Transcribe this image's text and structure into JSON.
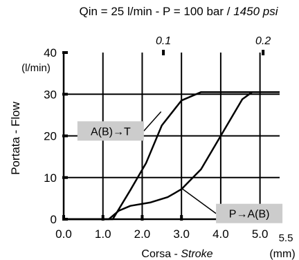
{
  "chart_data": {
    "type": "line",
    "title": {
      "prefix": "Qin = 25 l/min - P = 100 bar / ",
      "suffix": "1450 psi"
    },
    "xlabel": {
      "main": "Corsa - ",
      "alt": "Stroke"
    },
    "x_unit": "(mm)",
    "ylabel": "Portata - Flow",
    "y_unit": "(l/min)",
    "xlim": [
      0,
      5.5
    ],
    "ylim": [
      0,
      40
    ],
    "x_ticks": [
      {
        "value": 0,
        "label": "0.0"
      },
      {
        "value": 1,
        "label": "1.0"
      },
      {
        "value": 2,
        "label": "2.0"
      },
      {
        "value": 3,
        "label": "3.0"
      },
      {
        "value": 4,
        "label": "4.0"
      },
      {
        "value": 5,
        "label": "5.0"
      },
      {
        "value": 5.5,
        "label": "5.5"
      }
    ],
    "y_ticks": [
      {
        "value": 0,
        "label": "0"
      },
      {
        "value": 10,
        "label": "10"
      },
      {
        "value": 20,
        "label": "20"
      },
      {
        "value": 30,
        "label": "30"
      },
      {
        "value": 40,
        "label": "40"
      }
    ],
    "x2_ticks": [
      {
        "value": 0.1,
        "label": "0.1"
      },
      {
        "value": 0.2,
        "label": "0.2"
      }
    ],
    "x2_inch_per_mm": 0.03937,
    "grid": true,
    "series": [
      {
        "name": "A(B)→T",
        "points": [
          [
            0,
            0
          ],
          [
            1.25,
            0
          ],
          [
            1.7,
            7
          ],
          [
            2.1,
            13.5
          ],
          [
            2.5,
            22.5
          ],
          [
            3.0,
            28.5
          ],
          [
            3.5,
            30.5
          ],
          [
            5.5,
            30.5
          ]
        ]
      },
      {
        "name": "P→A(B)",
        "points": [
          [
            0,
            0
          ],
          [
            1.15,
            0
          ],
          [
            1.4,
            2
          ],
          [
            1.7,
            3.2
          ],
          [
            2.2,
            4
          ],
          [
            2.65,
            5.3
          ],
          [
            3.0,
            7.2
          ],
          [
            3.5,
            12
          ],
          [
            4.0,
            20
          ],
          [
            4.55,
            28.8
          ],
          [
            4.8,
            30.5
          ],
          [
            5.5,
            30.5
          ]
        ]
      }
    ],
    "annotations": [
      {
        "series": 0,
        "text": "A(B)→T",
        "box": [
          0.35,
          23.5
        ],
        "anchor": [
          2.48,
          25.8
        ]
      },
      {
        "series": 1,
        "text": "P→A(B)",
        "box": [
          3.88,
          3.7
        ],
        "anchor": [
          3.02,
          7.3
        ]
      }
    ]
  }
}
